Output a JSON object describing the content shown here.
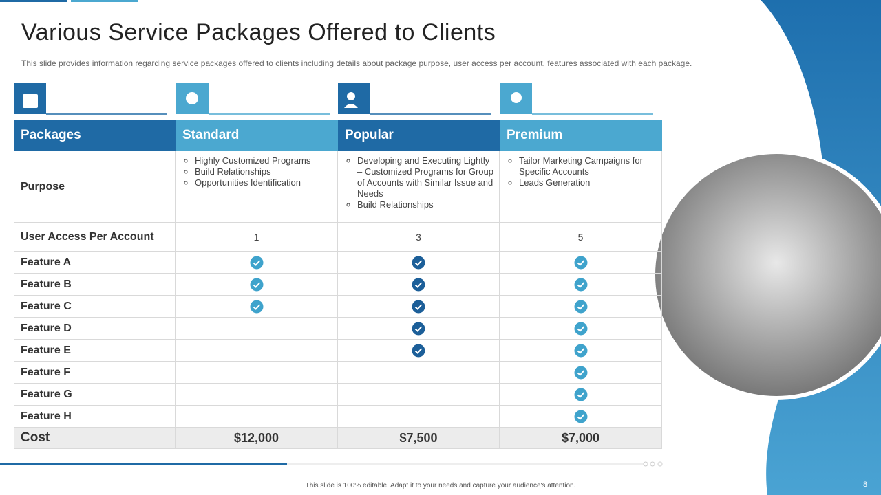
{
  "header": {
    "title": "Various Service Packages Offered to Clients",
    "subtitle": "This slide provides information regarding service packages offered to clients including details about package purpose, user access per account, features associated with each package."
  },
  "table": {
    "columns": [
      "Packages",
      "Standard",
      "Popular",
      "Premium"
    ],
    "purpose": {
      "label": "Purpose",
      "items": [
        [
          "Highly Customized Programs",
          "Build Relationships",
          "Opportunities Identification"
        ],
        [
          "Developing and Executing Lightly – Customized Programs for Group of Accounts with Similar Issue and Needs",
          "Build Relationships"
        ],
        [
          "Tailor Marketing Campaigns for Specific Accounts",
          "Leads Generation"
        ]
      ]
    },
    "user_access": {
      "label": "User Access Per Account",
      "values": [
        1,
        3,
        5
      ]
    },
    "features": [
      {
        "label": "Feature A",
        "included": [
          true,
          true,
          true
        ]
      },
      {
        "label": "Feature B",
        "included": [
          true,
          true,
          true
        ]
      },
      {
        "label": "Feature C",
        "included": [
          true,
          true,
          true
        ]
      },
      {
        "label": "Feature D",
        "included": [
          false,
          true,
          true
        ]
      },
      {
        "label": "Feature E",
        "included": [
          false,
          true,
          true
        ]
      },
      {
        "label": "Feature F",
        "included": [
          false,
          false,
          true
        ]
      },
      {
        "label": "Feature G",
        "included": [
          false,
          false,
          true
        ]
      },
      {
        "label": "Feature H",
        "included": [
          false,
          false,
          true
        ]
      }
    ],
    "cost": {
      "label": "Cost",
      "values": [
        "$12,000",
        "$7,500",
        "$7,000"
      ]
    }
  },
  "footer": {
    "note": "This slide is 100% editable. Adapt it to your needs and capture your audience's attention.",
    "page": 8
  }
}
